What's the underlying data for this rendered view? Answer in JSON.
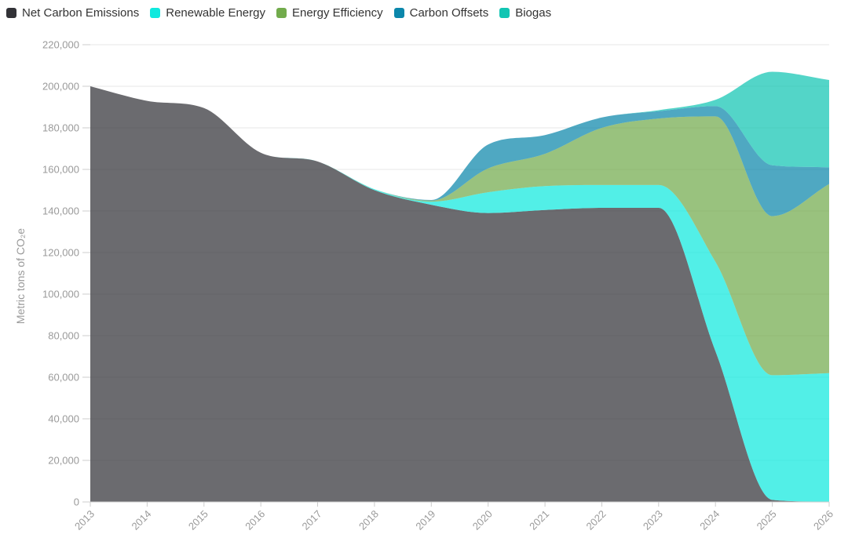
{
  "legend": {
    "position": "top-left",
    "items": [
      {
        "label": "Net Carbon Emissions",
        "color": "#323237"
      },
      {
        "label": "Renewable Energy",
        "color": "#0fe9de"
      },
      {
        "label": "Energy Efficiency",
        "color": "#72ab4c"
      },
      {
        "label": "Carbon Offsets",
        "color": "#0b87ab"
      },
      {
        "label": "Biogas",
        "color": "#11c5b3"
      }
    ]
  },
  "chart_data": {
    "type": "area",
    "stacking": "normal",
    "title": "",
    "xlabel": "",
    "ylabel": "Metric tons of CO₂e",
    "x": [
      2013,
      2014,
      2015,
      2016,
      2017,
      2018,
      2019,
      2020,
      2021,
      2022,
      2023,
      2024,
      2025,
      2026
    ],
    "x_tick_labels": [
      "2013",
      "2014",
      "2015",
      "2016",
      "2017",
      "2018",
      "2019",
      "2020",
      "2021",
      "2022",
      "2023",
      "2024",
      "2025",
      "2026"
    ],
    "ylim": [
      0,
      220000
    ],
    "ytick_step": 20000,
    "y_tick_labels": [
      "0",
      "20,000",
      "40,000",
      "60,000",
      "80,000",
      "100,000",
      "120,000",
      "140,000",
      "160,000",
      "180,000",
      "200,000",
      "220,000"
    ],
    "grid": true,
    "fill_opacity": 0.72,
    "legend_position": "top-left",
    "series": [
      {
        "name": "Net Carbon Emissions",
        "color": "#323237",
        "values": [
          200000,
          193000,
          189500,
          168000,
          163800,
          150000,
          143000,
          139000,
          140500,
          141500,
          141500,
          72500,
          1000,
          0
        ]
      },
      {
        "name": "Renewable Energy",
        "color": "#0fe9de",
        "values": [
          0,
          0,
          0,
          0,
          0,
          500,
          1500,
          10000,
          11500,
          11000,
          11000,
          43000,
          60000,
          62000
        ]
      },
      {
        "name": "Energy Efficiency",
        "color": "#72ab4c",
        "values": [
          0,
          0,
          0,
          0,
          0,
          0,
          500,
          11500,
          15500,
          27500,
          32000,
          70000,
          76500,
          91000
        ]
      },
      {
        "name": "Carbon Offsets",
        "color": "#0b87ab",
        "values": [
          0,
          0,
          0,
          0,
          0,
          0,
          300,
          11500,
          9000,
          5000,
          3500,
          5000,
          24500,
          8000
        ]
      },
      {
        "name": "Biogas",
        "color": "#11c5b3",
        "values": [
          0,
          0,
          0,
          0,
          0,
          0,
          0,
          0,
          0,
          0,
          500,
          3000,
          45000,
          42000
        ]
      }
    ]
  },
  "style": {
    "background": "#ffffff",
    "grid_color": "#e7e7e7",
    "axis_line_color": "#cccccc",
    "tick_label_color": "#9a9a9a",
    "axis_title_color": "#9a9a9a",
    "legend_text_color": "#333333"
  }
}
